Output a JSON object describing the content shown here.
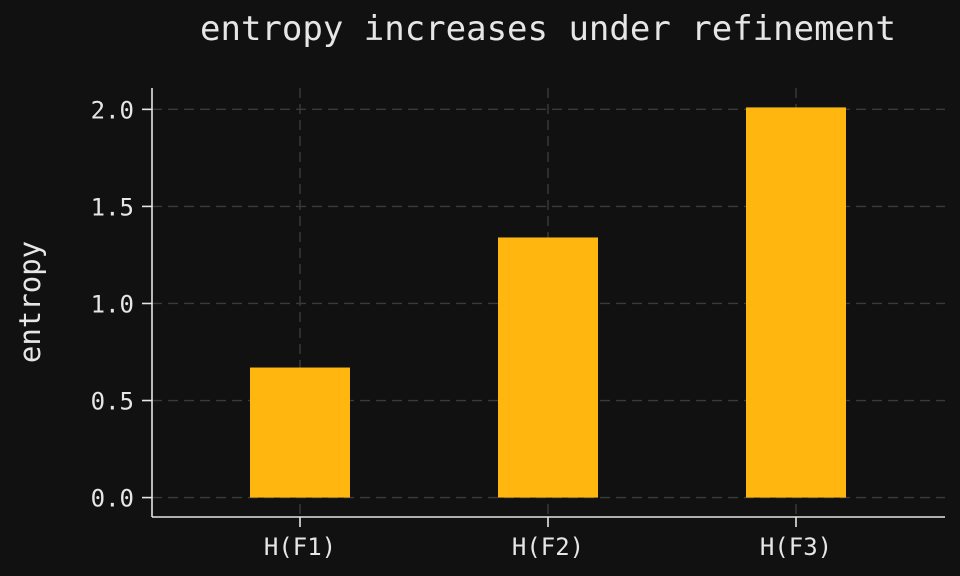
{
  "chart_data": {
    "type": "bar",
    "title": "entropy increases under refinement",
    "xlabel": "",
    "ylabel": "entropy",
    "categories": [
      "H(F1)",
      "H(F2)",
      "H(F3)"
    ],
    "values": [
      0.67,
      1.34,
      2.01
    ],
    "ylim": [
      -0.1,
      2.11
    ],
    "yticks": [
      0.0,
      0.5,
      1.0,
      1.5,
      2.0
    ],
    "ytick_labels": [
      "0.0",
      "0.5",
      "1.0",
      "1.5",
      "2.0"
    ],
    "grid": true,
    "bar_color": "#ffb70f",
    "background_color": "#111111",
    "text_color": "#e6e6e6",
    "grid_color": "#3a3a3a"
  }
}
